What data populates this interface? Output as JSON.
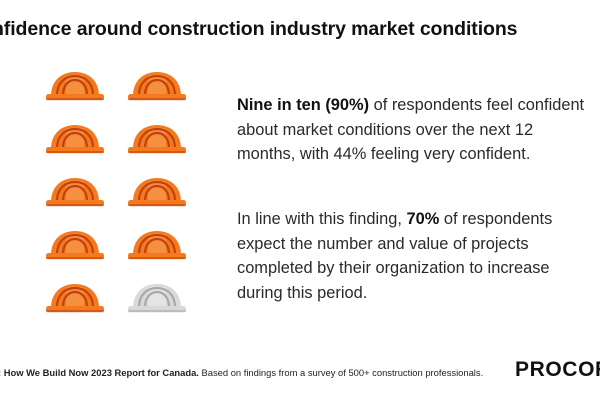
{
  "title": "nfidence around construction industry market conditions",
  "hats": {
    "total": 10,
    "highlighted": 9,
    "colors": {
      "active": "#F47A20",
      "active_dark": "#C2410C",
      "active_light": "#F8A35C",
      "inactive": "#D9D9D9",
      "inactive_dark": "#A9A9A9",
      "inactive_light": "#EDEDED"
    }
  },
  "paragraph1": {
    "bold": "Nine in ten (90%)",
    "rest": " of respondents feel confident about market conditions over the next 12 months, with 44% feeling very confident."
  },
  "paragraph2": {
    "pre": "In line with this finding, ",
    "bold": "70%",
    "rest": " of respondents expect the number and value of projects completed by their organization to increase during this period."
  },
  "footer": {
    "bold": ": How We Build Now 2023 Report for Canada.",
    "rest": " Based on findings from a survey of 500+ construction professionals."
  },
  "logo": "PROCOR"
}
